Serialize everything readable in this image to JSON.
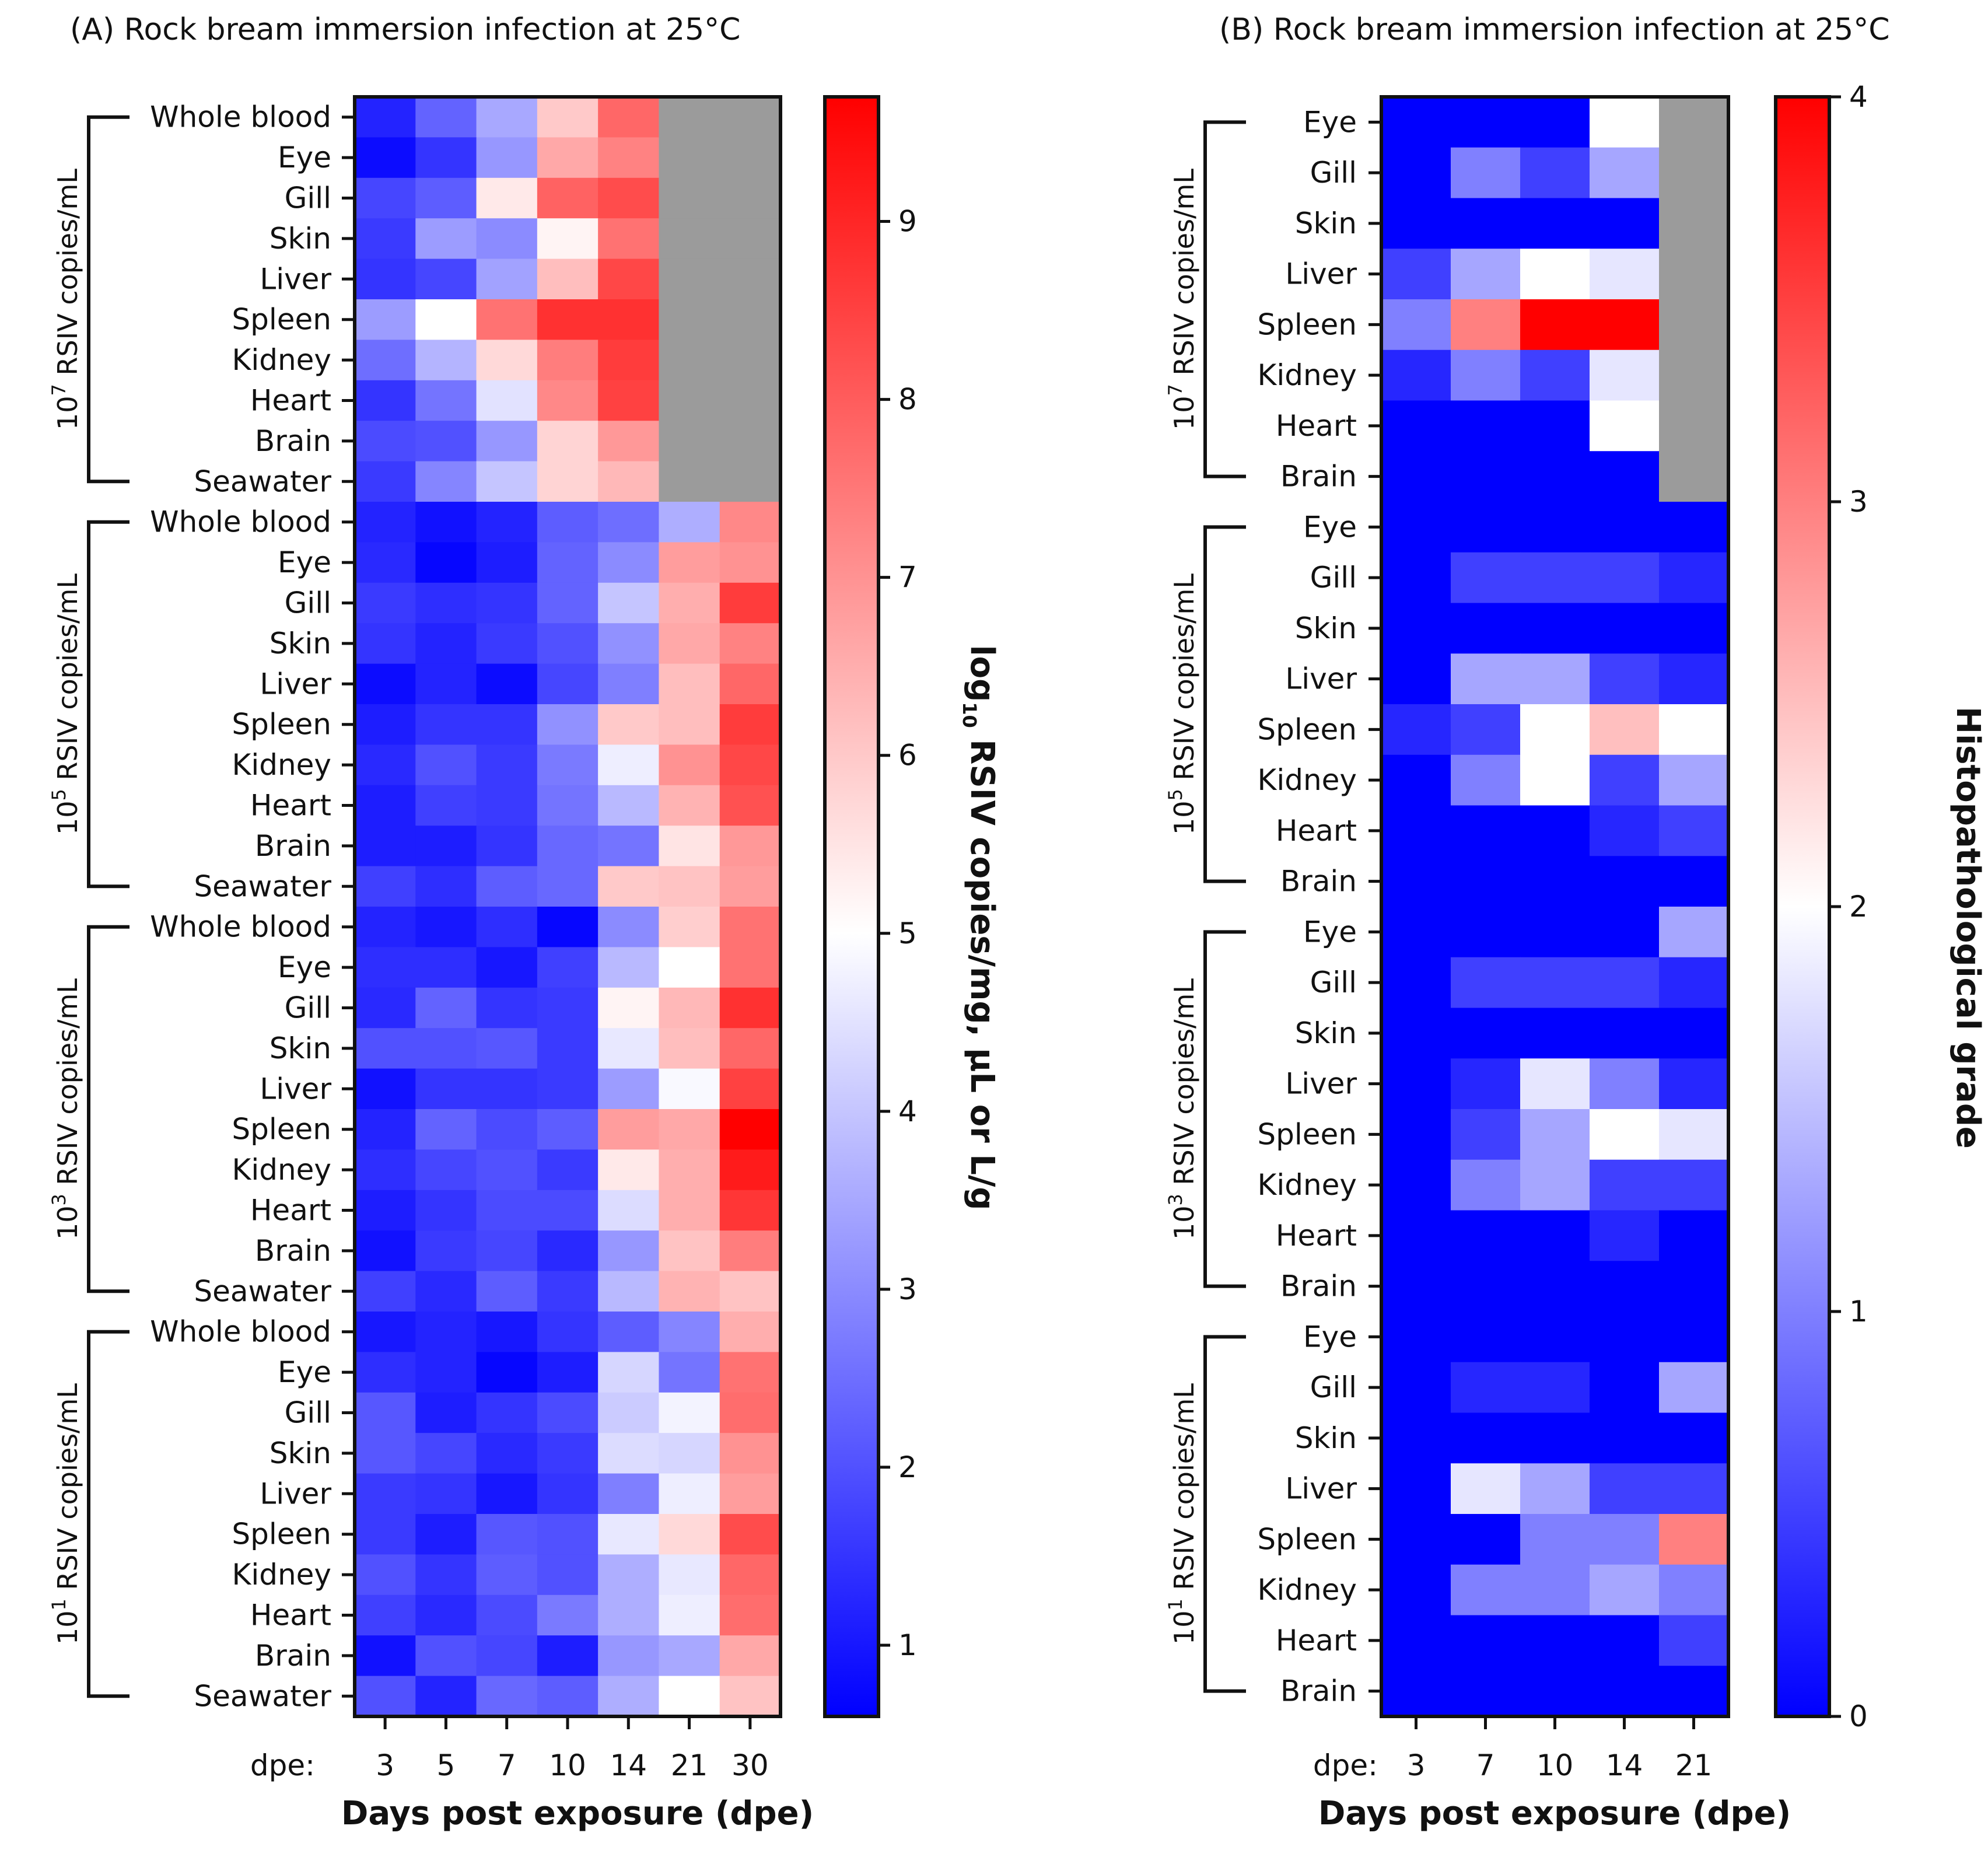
{
  "colors": {
    "low": "#0000ff",
    "mid": "#ffffff",
    "high": "#ff0000",
    "missing": "#9b9b9b",
    "axis": "#111111"
  },
  "chart_data": [
    {
      "type": "heatmap",
      "title": "(A) Rock bream immersion infection at 25°C",
      "xlabel": "Days post exposure (dpe)",
      "x_prefix": "dpe:",
      "columns": [
        "3",
        "5",
        "7",
        "10",
        "14",
        "21",
        "30"
      ],
      "colorbar": {
        "label_main": "log",
        "label_sub": "10",
        "label_rest": " RSIV copies/mg, μL or L/g",
        "min": 0.6,
        "max": 9.7,
        "mid": 5,
        "ticks": [
          "1",
          "2",
          "3",
          "4",
          "5",
          "6",
          "7",
          "8",
          "9"
        ]
      },
      "groups": [
        {
          "base": "10",
          "exp": "7",
          "unit": " RSIV copies/mL",
          "rows": [
            {
              "label": "Whole blood",
              "values": [
                1.2,
                2.3,
                3.5,
                6.0,
                7.8,
                null,
                null
              ]
            },
            {
              "label": "Eye",
              "values": [
                0.8,
                1.5,
                3.2,
                6.6,
                7.3,
                null,
                null
              ]
            },
            {
              "label": "Gill",
              "values": [
                1.8,
                2.2,
                5.4,
                7.9,
                8.3,
                null,
                null
              ]
            },
            {
              "label": "Skin",
              "values": [
                1.6,
                3.3,
                3.0,
                5.2,
                7.6,
                null,
                null
              ]
            },
            {
              "label": "Liver",
              "values": [
                1.5,
                1.8,
                3.4,
                6.2,
                8.4,
                null,
                null
              ]
            },
            {
              "label": "Spleen",
              "values": [
                3.3,
                5.0,
                7.6,
                8.8,
                8.8,
                null,
                null
              ]
            },
            {
              "label": "Kidney",
              "values": [
                2.5,
                3.7,
                5.7,
                7.4,
                8.6,
                null,
                null
              ]
            },
            {
              "label": "Heart",
              "values": [
                1.5,
                2.6,
                4.5,
                7.2,
                8.5,
                null,
                null
              ]
            },
            {
              "label": "Brain",
              "values": [
                1.9,
                2.0,
                3.2,
                5.8,
                6.9,
                null,
                null
              ]
            },
            {
              "label": "Seawater",
              "values": [
                1.6,
                2.9,
                4.0,
                5.8,
                6.3,
                null,
                null
              ]
            }
          ]
        },
        {
          "base": "10",
          "exp": "5",
          "unit": " RSIV copies/mL",
          "rows": [
            {
              "label": "Whole blood",
              "values": [
                1.2,
                0.9,
                1.2,
                2.2,
                2.5,
                3.6,
                7.2
              ]
            },
            {
              "label": "Eye",
              "values": [
                1.3,
                0.7,
                1.1,
                2.3,
                3.0,
                6.8,
                7.0
              ]
            },
            {
              "label": "Gill",
              "values": [
                1.6,
                1.4,
                1.5,
                2.3,
                4.0,
                6.5,
                8.6
              ]
            },
            {
              "label": "Skin",
              "values": [
                1.5,
                1.2,
                1.6,
                2.0,
                3.1,
                6.6,
                7.3
              ]
            },
            {
              "label": "Liver",
              "values": [
                0.8,
                1.2,
                0.8,
                1.8,
                2.8,
                6.2,
                7.8
              ]
            },
            {
              "label": "Spleen",
              "values": [
                1.1,
                1.5,
                1.5,
                3.1,
                6.0,
                6.2,
                8.6
              ]
            },
            {
              "label": "Kidney",
              "values": [
                1.3,
                2.0,
                1.6,
                2.7,
                4.7,
                7.0,
                8.4
              ]
            },
            {
              "label": "Heart",
              "values": [
                1.1,
                1.7,
                1.6,
                2.6,
                3.8,
                6.4,
                8.2
              ]
            },
            {
              "label": "Brain",
              "values": [
                1.1,
                1.1,
                1.5,
                2.4,
                2.6,
                5.5,
                6.9
              ]
            },
            {
              "label": "Seawater",
              "values": [
                1.7,
                1.4,
                2.2,
                2.4,
                6.0,
                6.1,
                6.8
              ]
            }
          ]
        },
        {
          "base": "10",
          "exp": "3",
          "unit": " RSIV copies/mL",
          "rows": [
            {
              "label": "Whole blood",
              "values": [
                1.2,
                1.0,
                1.4,
                0.7,
                3.0,
                5.9,
                7.6
              ]
            },
            {
              "label": "Eye",
              "values": [
                1.4,
                1.4,
                1.0,
                1.7,
                3.8,
                5.0,
                7.6
              ]
            },
            {
              "label": "Gill",
              "values": [
                1.3,
                2.3,
                1.5,
                1.6,
                5.2,
                6.3,
                8.8
              ]
            },
            {
              "label": "Skin",
              "values": [
                2.0,
                2.0,
                2.1,
                1.6,
                4.6,
                6.2,
                7.8
              ]
            },
            {
              "label": "Liver",
              "values": [
                0.9,
                1.5,
                1.5,
                1.6,
                3.3,
                4.9,
                8.5
              ]
            },
            {
              "label": "Spleen",
              "values": [
                1.2,
                2.3,
                1.9,
                2.2,
                6.8,
                6.6,
                9.7
              ]
            },
            {
              "label": "Kidney",
              "values": [
                1.4,
                1.8,
                2.0,
                1.6,
                5.4,
                6.5,
                9.2
              ]
            },
            {
              "label": "Heart",
              "values": [
                1.1,
                1.5,
                1.9,
                1.9,
                4.4,
                6.5,
                8.7
              ]
            },
            {
              "label": "Brain",
              "values": [
                0.9,
                1.6,
                1.8,
                1.3,
                3.2,
                6.1,
                7.4
              ]
            },
            {
              "label": "Seawater",
              "values": [
                1.7,
                1.3,
                2.2,
                1.6,
                3.8,
                6.4,
                6.1
              ]
            }
          ]
        },
        {
          "base": "10",
          "exp": "1",
          "unit": " RSIV copies/mL",
          "rows": [
            {
              "label": "Whole blood",
              "values": [
                1.0,
                1.2,
                1.0,
                1.5,
                2.2,
                2.9,
                6.5
              ]
            },
            {
              "label": "Eye",
              "values": [
                1.4,
                1.2,
                0.7,
                1.1,
                4.3,
                2.6,
                7.6
              ]
            },
            {
              "label": "Gill",
              "values": [
                2.1,
                1.1,
                1.5,
                1.9,
                4.1,
                4.8,
                7.7
              ]
            },
            {
              "label": "Skin",
              "values": [
                2.1,
                1.8,
                1.3,
                1.6,
                4.4,
                4.3,
                7.0
              ]
            },
            {
              "label": "Liver",
              "values": [
                1.6,
                1.5,
                1.0,
                1.5,
                2.8,
                4.7,
                6.8
              ]
            },
            {
              "label": "Spleen",
              "values": [
                1.6,
                1.1,
                2.1,
                2.0,
                4.6,
                5.7,
                8.3
              ]
            },
            {
              "label": "Kidney",
              "values": [
                2.0,
                1.5,
                2.2,
                2.0,
                3.6,
                4.6,
                7.8
              ]
            },
            {
              "label": "Heart",
              "values": [
                1.7,
                1.3,
                1.9,
                2.7,
                3.6,
                4.7,
                7.7
              ]
            },
            {
              "label": "Brain",
              "values": [
                0.9,
                2.0,
                1.8,
                1.1,
                3.2,
                3.5,
                6.6
              ]
            },
            {
              "label": "Seawater",
              "values": [
                2.0,
                1.2,
                2.4,
                2.2,
                3.6,
                5.0,
                6.1
              ]
            }
          ]
        }
      ]
    },
    {
      "type": "heatmap",
      "title": "(B) Rock bream immersion infection at 25°C",
      "xlabel": "Days post exposure (dpe)",
      "x_prefix": "dpe:",
      "columns": [
        "3",
        "7",
        "10",
        "14",
        "21"
      ],
      "colorbar": {
        "label": "Histopathological grade",
        "min": 0,
        "max": 4,
        "mid": 2,
        "ticks": [
          "0",
          "1",
          "2",
          "3",
          "4"
        ]
      },
      "groups": [
        {
          "base": "10",
          "exp": "7",
          "unit": " RSIV copies/mL",
          "rows": [
            {
              "label": "Eye",
              "values": [
                0,
                0,
                0,
                2.0,
                null
              ]
            },
            {
              "label": "Gill",
              "values": [
                0,
                1.0,
                0.5,
                1.3,
                null
              ]
            },
            {
              "label": "Skin",
              "values": [
                0,
                0,
                0,
                0,
                null
              ]
            },
            {
              "label": "Liver",
              "values": [
                0.5,
                1.3,
                2.0,
                1.8,
                null
              ]
            },
            {
              "label": "Spleen",
              "values": [
                1.0,
                3.0,
                4.0,
                4.0,
                null
              ]
            },
            {
              "label": "Kidney",
              "values": [
                0.3,
                1.0,
                0.5,
                1.8,
                null
              ]
            },
            {
              "label": "Heart",
              "values": [
                0,
                0,
                0,
                2.0,
                null
              ]
            },
            {
              "label": "Brain",
              "values": [
                0,
                0,
                0,
                0,
                null
              ]
            }
          ]
        },
        {
          "base": "10",
          "exp": "5",
          "unit": " RSIV copies/mL",
          "rows": [
            {
              "label": "Eye",
              "values": [
                0,
                0,
                0,
                0,
                0
              ]
            },
            {
              "label": "Gill",
              "values": [
                0,
                0.5,
                0.5,
                0.5,
                0.3
              ]
            },
            {
              "label": "Skin",
              "values": [
                0,
                0,
                0,
                0,
                0
              ]
            },
            {
              "label": "Liver",
              "values": [
                0,
                1.3,
                1.3,
                0.5,
                0.3
              ]
            },
            {
              "label": "Spleen",
              "values": [
                0.3,
                0.5,
                2.0,
                2.5,
                2.0
              ]
            },
            {
              "label": "Kidney",
              "values": [
                0,
                1.0,
                2.0,
                0.5,
                1.3
              ]
            },
            {
              "label": "Heart",
              "values": [
                0,
                0,
                0,
                0.3,
                0.5
              ]
            },
            {
              "label": "Brain",
              "values": [
                0,
                0,
                0,
                0,
                0
              ]
            }
          ]
        },
        {
          "base": "10",
          "exp": "3",
          "unit": " RSIV copies/mL",
          "rows": [
            {
              "label": "Eye",
              "values": [
                0,
                0,
                0,
                0,
                1.3
              ]
            },
            {
              "label": "Gill",
              "values": [
                0,
                0.5,
                0.5,
                0.5,
                0.3
              ]
            },
            {
              "label": "Skin",
              "values": [
                0,
                0,
                0,
                0,
                0
              ]
            },
            {
              "label": "Liver",
              "values": [
                0,
                0.3,
                1.8,
                1.0,
                0.3
              ]
            },
            {
              "label": "Spleen",
              "values": [
                0,
                0.5,
                1.3,
                2.0,
                1.8
              ]
            },
            {
              "label": "Kidney",
              "values": [
                0,
                1.0,
                1.3,
                0.5,
                0.5
              ]
            },
            {
              "label": "Heart",
              "values": [
                0,
                0,
                0,
                0.3,
                0
              ]
            },
            {
              "label": "Brain",
              "values": [
                0,
                0,
                0,
                0,
                0
              ]
            }
          ]
        },
        {
          "base": "10",
          "exp": "1",
          "unit": " RSIV copies/mL",
          "rows": [
            {
              "label": "Eye",
              "values": [
                0,
                0,
                0,
                0,
                0
              ]
            },
            {
              "label": "Gill",
              "values": [
                0,
                0.3,
                0.3,
                0,
                1.3
              ]
            },
            {
              "label": "Skin",
              "values": [
                0,
                0,
                0,
                0,
                0
              ]
            },
            {
              "label": "Liver",
              "values": [
                0,
                1.8,
                1.3,
                0.5,
                0.5
              ]
            },
            {
              "label": "Spleen",
              "values": [
                0,
                0,
                1.0,
                1.0,
                3.0
              ]
            },
            {
              "label": "Kidney",
              "values": [
                0,
                1.0,
                1.0,
                1.3,
                1.0
              ]
            },
            {
              "label": "Heart",
              "values": [
                0,
                0,
                0,
                0,
                0.5
              ]
            },
            {
              "label": "Brain",
              "values": [
                0,
                0,
                0,
                0,
                0
              ]
            }
          ]
        }
      ]
    }
  ]
}
